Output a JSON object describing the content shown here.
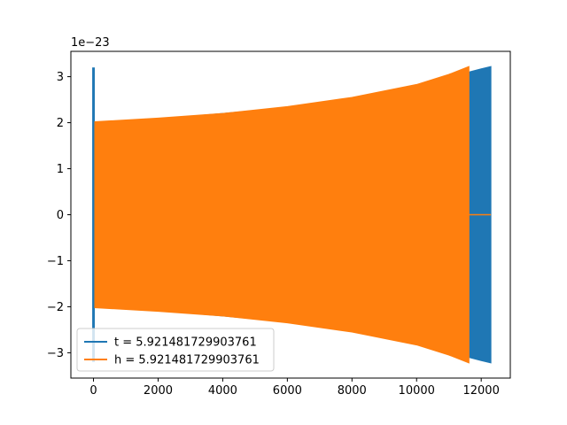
{
  "chart_data": {
    "type": "line",
    "title": "",
    "xlabel": "",
    "ylabel": "",
    "y_offset_text": "1e−23",
    "xlim": [
      -700,
      12900
    ],
    "ylim": [
      -3.55,
      3.55
    ],
    "grid": false,
    "legend_placement": "lower-left",
    "x_ticks": [
      0,
      2000,
      4000,
      6000,
      8000,
      10000,
      12000
    ],
    "x_tick_labels": [
      "0",
      "2000",
      "4000",
      "6000",
      "8000",
      "10000",
      "12000"
    ],
    "y_ticks": [
      -3,
      -2,
      -1,
      0,
      1,
      2,
      3
    ],
    "y_tick_labels": [
      "−3",
      "−2",
      "−1",
      "0",
      "1",
      "2",
      "3"
    ],
    "series": [
      {
        "name": "t = 5.921481729903761",
        "color": "#1f77b4",
        "spike": {
          "x": [
            -40,
            40
          ],
          "amplitude": 3.2
        },
        "envelope": [
          {
            "x": 40,
            "amplitude": 2.0
          },
          {
            "x": 2000,
            "amplitude": 2.08
          },
          {
            "x": 4000,
            "amplitude": 2.2
          },
          {
            "x": 6000,
            "amplitude": 2.33
          },
          {
            "x": 8000,
            "amplitude": 2.52
          },
          {
            "x": 10000,
            "amplitude": 2.8
          },
          {
            "x": 11000,
            "amplitude": 3.0
          },
          {
            "x": 11620,
            "amplitude": 3.1
          },
          {
            "x": 12000,
            "amplitude": 3.17
          },
          {
            "x": 12300,
            "amplitude": 3.22
          }
        ]
      },
      {
        "name": "h = 5.921481729903761",
        "color": "#ff7f0e",
        "envelope": [
          {
            "x": 40,
            "amplitude": 2.02
          },
          {
            "x": 2000,
            "amplitude": 2.1
          },
          {
            "x": 4000,
            "amplitude": 2.2
          },
          {
            "x": 6000,
            "amplitude": 2.35
          },
          {
            "x": 8000,
            "amplitude": 2.55
          },
          {
            "x": 10000,
            "amplitude": 2.83
          },
          {
            "x": 11000,
            "amplitude": 3.05
          },
          {
            "x": 11620,
            "amplitude": 3.22
          }
        ],
        "flat": {
          "x": [
            11620,
            12300
          ],
          "y": 0
        }
      }
    ]
  }
}
